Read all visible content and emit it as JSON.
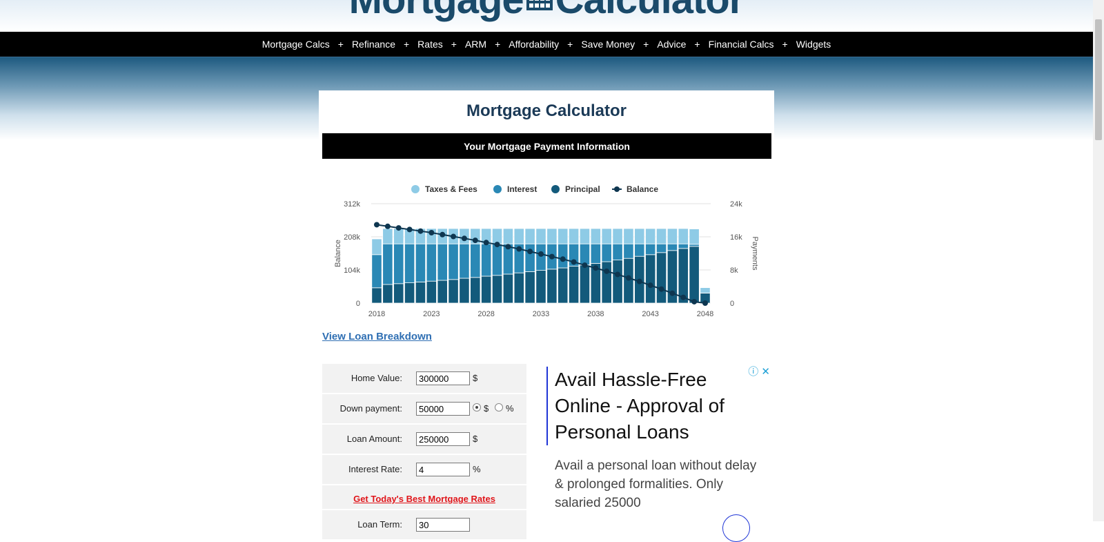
{
  "header": {
    "logo_left": "Mortgage",
    "logo_right": "Calculator"
  },
  "nav": {
    "items": [
      "Mortgage Calcs",
      "Refinance",
      "Rates",
      "ARM",
      "Affordability",
      "Save Money",
      "Advice",
      "Financial Calcs",
      "Widgets"
    ],
    "separator": "+"
  },
  "card": {
    "title": "Mortgage Calculator",
    "info_bar": "Your Mortgage Payment Information",
    "breakdown_link": "View Loan Breakdown"
  },
  "chart_data": {
    "type": "bar",
    "legend_placement": "top",
    "legend": [
      {
        "name": "Taxes & Fees",
        "color": "#8ecbe6"
      },
      {
        "name": "Interest",
        "color": "#2a88b5"
      },
      {
        "name": "Principal",
        "color": "#135a7b"
      },
      {
        "name": "Balance",
        "color": "#0e3650"
      }
    ],
    "left_axis": {
      "label": "Balance",
      "ticks": [
        "0",
        "104k",
        "208k",
        "312k"
      ],
      "range": [
        0,
        312000
      ]
    },
    "right_axis": {
      "label": "Payments",
      "ticks": [
        "0",
        "8k",
        "16k",
        "24k"
      ],
      "range": [
        0,
        24000
      ]
    },
    "x_ticks": [
      "2018",
      "2023",
      "2028",
      "2033",
      "2038",
      "2043",
      "2048"
    ],
    "years": [
      2018,
      2019,
      2020,
      2021,
      2022,
      2023,
      2024,
      2025,
      2026,
      2027,
      2028,
      2029,
      2030,
      2031,
      2032,
      2033,
      2034,
      2035,
      2036,
      2037,
      2038,
      2039,
      2040,
      2041,
      2042,
      2043,
      2044,
      2045,
      2046,
      2047,
      2048
    ],
    "series": [
      {
        "name": "Principal",
        "values": [
          3700,
          4500,
          4700,
          4900,
          5100,
          5300,
          5500,
          5700,
          6000,
          6200,
          6500,
          6700,
          7000,
          7300,
          7600,
          7900,
          8200,
          8500,
          8900,
          9200,
          9600,
          10000,
          10400,
          10800,
          11300,
          11700,
          12200,
          12700,
          13200,
          13700,
          2400
        ]
      },
      {
        "name": "Interest",
        "values": [
          8000,
          9800,
          9600,
          9400,
          9200,
          9000,
          8800,
          8600,
          8300,
          8100,
          7800,
          7600,
          7300,
          7000,
          6700,
          6400,
          6100,
          5800,
          5400,
          5100,
          4700,
          4300,
          3900,
          3500,
          3000,
          2600,
          2100,
          1600,
          1100,
          500,
          30
        ]
      },
      {
        "name": "Taxes & Fees",
        "values": [
          3800,
          3700,
          3700,
          3700,
          3700,
          3700,
          3700,
          3700,
          3700,
          3700,
          3700,
          3700,
          3700,
          3700,
          3700,
          3700,
          3700,
          3700,
          3700,
          3700,
          3700,
          3700,
          3700,
          3700,
          3700,
          3700,
          3700,
          3700,
          3700,
          3700,
          1300
        ]
      },
      {
        "name": "Balance",
        "values": [
          246000,
          241000,
          236000,
          231000,
          226000,
          221000,
          215000,
          209000,
          203000,
          197000,
          190000,
          184000,
          177000,
          170000,
          162000,
          154000,
          146000,
          138000,
          129000,
          119000,
          110000,
          100000,
          90000,
          79000,
          68000,
          56000,
          44000,
          31000,
          18000,
          4400,
          0
        ]
      }
    ]
  },
  "form": {
    "rows": [
      {
        "label": "Home Value:",
        "value": "300000",
        "unit": "$"
      },
      {
        "label": "Down payment:",
        "value": "50000",
        "unit_dollar": "$",
        "unit_percent": "%"
      },
      {
        "label": "Loan Amount:",
        "value": "250000",
        "unit": "$"
      },
      {
        "label": "Interest Rate:",
        "value": "4",
        "unit": "%"
      }
    ],
    "rates_link": "Get Today's Best Mortgage Rates",
    "partial_row": {
      "label": "Loan Term:",
      "value": "30"
    }
  },
  "ad": {
    "headline": "Avail Hassle-Free Online - Approval of Personal Loans",
    "body": "Avail a personal loan without delay & prolonged formalities. Only salaried 25000",
    "info_icon": "ⓘ",
    "close_icon": "✕"
  }
}
